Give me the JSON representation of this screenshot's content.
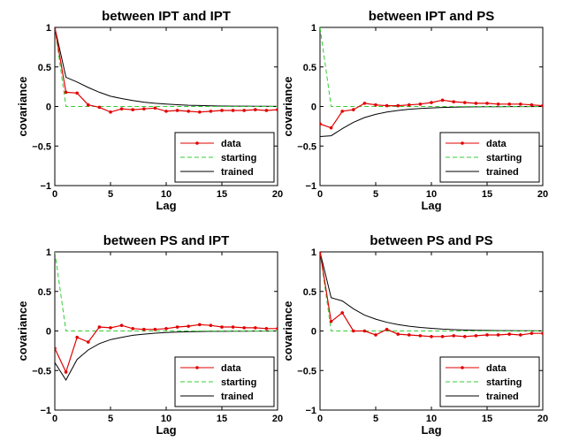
{
  "colors": {
    "data": "#e00000",
    "starting": "#33cc33",
    "trained": "#000000",
    "axes": "#000000",
    "background": "#ffffff"
  },
  "chart_data": [
    {
      "type": "line",
      "title": "between IPT and IPT",
      "xlabel": "Lag",
      "ylabel": "covariance",
      "xlim": [
        0,
        20
      ],
      "ylim": [
        -1,
        1
      ],
      "xticks": [
        0,
        5,
        10,
        15,
        20
      ],
      "yticks": [
        -1,
        -0.5,
        0,
        0.5,
        1
      ],
      "legend": {
        "position": "bottom-right",
        "entries": [
          "data",
          "starting",
          "trained"
        ]
      },
      "x": [
        0,
        1,
        2,
        3,
        4,
        5,
        6,
        7,
        8,
        9,
        10,
        11,
        12,
        13,
        14,
        15,
        16,
        17,
        18,
        19,
        20
      ],
      "series": [
        {
          "name": "data",
          "style": "solid-markers",
          "values": [
            1,
            0.18,
            0.17,
            0.02,
            -0.01,
            -0.07,
            -0.03,
            -0.04,
            -0.03,
            -0.02,
            -0.06,
            -0.05,
            -0.06,
            -0.07,
            -0.06,
            -0.05,
            -0.05,
            -0.05,
            -0.04,
            -0.05,
            -0.04
          ]
        },
        {
          "name": "starting",
          "style": "dashed",
          "values": [
            1,
            0,
            0,
            0,
            0,
            0,
            0,
            0,
            0,
            0,
            0,
            0,
            0,
            0,
            0,
            0,
            0,
            0,
            0,
            0,
            0
          ]
        },
        {
          "name": "trained",
          "style": "solid",
          "values": [
            1,
            0.37,
            0.31,
            0.24,
            0.18,
            0.13,
            0.1,
            0.075,
            0.055,
            0.04,
            0.03,
            0.022,
            0.016,
            0.012,
            0.009,
            0.006,
            0.005,
            0.004,
            0.003,
            0.002,
            0.001
          ]
        }
      ]
    },
    {
      "type": "line",
      "title": "between IPT and PS",
      "xlabel": "Lag",
      "ylabel": "covariance",
      "xlim": [
        0,
        20
      ],
      "ylim": [
        -1,
        1
      ],
      "xticks": [
        0,
        5,
        10,
        15,
        20
      ],
      "yticks": [
        -1,
        -0.5,
        0,
        0.5,
        1
      ],
      "legend": {
        "position": "bottom-right",
        "entries": [
          "data",
          "starting",
          "trained"
        ]
      },
      "x": [
        0,
        1,
        2,
        3,
        4,
        5,
        6,
        7,
        8,
        9,
        10,
        11,
        12,
        13,
        14,
        15,
        16,
        17,
        18,
        19,
        20
      ],
      "series": [
        {
          "name": "data",
          "style": "solid-markers",
          "values": [
            -0.22,
            -0.27,
            -0.06,
            -0.04,
            0.04,
            0.02,
            0.01,
            0.01,
            0.02,
            0.03,
            0.05,
            0.08,
            0.06,
            0.05,
            0.04,
            0.04,
            0.03,
            0.03,
            0.03,
            0.02,
            0.01
          ]
        },
        {
          "name": "starting",
          "style": "dashed",
          "values": [
            1,
            0,
            0,
            0,
            0,
            0,
            0,
            0,
            0,
            0,
            0,
            0,
            0,
            0,
            0,
            0,
            0,
            0,
            0,
            0,
            0
          ]
        },
        {
          "name": "trained",
          "style": "solid",
          "values": [
            -0.38,
            -0.37,
            -0.28,
            -0.2,
            -0.14,
            -0.1,
            -0.07,
            -0.05,
            -0.035,
            -0.025,
            -0.018,
            -0.012,
            -0.008,
            -0.006,
            -0.004,
            -0.003,
            -0.002,
            -0.001,
            -0.001,
            -0.001,
            0
          ]
        }
      ]
    },
    {
      "type": "line",
      "title": "between PS and IPT",
      "xlabel": "Lag",
      "ylabel": "covariance",
      "xlim": [
        0,
        20
      ],
      "ylim": [
        -1,
        1
      ],
      "xticks": [
        0,
        5,
        10,
        15,
        20
      ],
      "yticks": [
        -1,
        -0.5,
        0,
        0.5,
        1
      ],
      "legend": {
        "position": "bottom-right",
        "entries": [
          "data",
          "starting",
          "trained"
        ]
      },
      "x": [
        0,
        1,
        2,
        3,
        4,
        5,
        6,
        7,
        8,
        9,
        10,
        11,
        12,
        13,
        14,
        15,
        16,
        17,
        18,
        19,
        20
      ],
      "series": [
        {
          "name": "data",
          "style": "solid-markers",
          "values": [
            -0.22,
            -0.52,
            -0.08,
            -0.14,
            0.05,
            0.04,
            0.07,
            0.03,
            0.02,
            0.02,
            0.03,
            0.05,
            0.06,
            0.08,
            0.07,
            0.05,
            0.05,
            0.04,
            0.04,
            0.03,
            0.03
          ]
        },
        {
          "name": "starting",
          "style": "dashed",
          "values": [
            1,
            0,
            0,
            0,
            0,
            0,
            0,
            0,
            0,
            0,
            0,
            0,
            0,
            0,
            0,
            0,
            0,
            0,
            0,
            0,
            0
          ]
        },
        {
          "name": "trained",
          "style": "solid",
          "values": [
            -0.4,
            -0.62,
            -0.36,
            -0.24,
            -0.16,
            -0.11,
            -0.08,
            -0.055,
            -0.04,
            -0.028,
            -0.02,
            -0.014,
            -0.01,
            -0.007,
            -0.005,
            -0.004,
            -0.003,
            -0.002,
            -0.001,
            -0.001,
            0
          ]
        }
      ]
    },
    {
      "type": "line",
      "title": "between PS and PS",
      "xlabel": "Lag",
      "ylabel": "covariance",
      "xlim": [
        0,
        20
      ],
      "ylim": [
        -1,
        1
      ],
      "xticks": [
        0,
        5,
        10,
        15,
        20
      ],
      "yticks": [
        -1,
        -0.5,
        0,
        0.5,
        1
      ],
      "legend": {
        "position": "bottom-right",
        "entries": [
          "data",
          "starting",
          "trained"
        ]
      },
      "x": [
        0,
        1,
        2,
        3,
        4,
        5,
        6,
        7,
        8,
        9,
        10,
        11,
        12,
        13,
        14,
        15,
        16,
        17,
        18,
        19,
        20
      ],
      "series": [
        {
          "name": "data",
          "style": "solid-markers",
          "values": [
            1,
            0.12,
            0.23,
            0.0,
            0.0,
            -0.05,
            0.02,
            -0.04,
            -0.05,
            -0.06,
            -0.07,
            -0.07,
            -0.06,
            -0.07,
            -0.06,
            -0.05,
            -0.05,
            -0.04,
            -0.05,
            -0.03,
            -0.03
          ]
        },
        {
          "name": "starting",
          "style": "dashed",
          "values": [
            1,
            0,
            0,
            0,
            0,
            0,
            0,
            0,
            0,
            0,
            0,
            0,
            0,
            0,
            0,
            0,
            0,
            0,
            0,
            0,
            0
          ]
        },
        {
          "name": "trained",
          "style": "solid",
          "values": [
            1,
            0.42,
            0.38,
            0.28,
            0.2,
            0.15,
            0.11,
            0.08,
            0.06,
            0.045,
            0.033,
            0.024,
            0.017,
            0.012,
            0.009,
            0.007,
            0.005,
            0.004,
            0.003,
            0.002,
            0.001
          ]
        }
      ]
    }
  ]
}
